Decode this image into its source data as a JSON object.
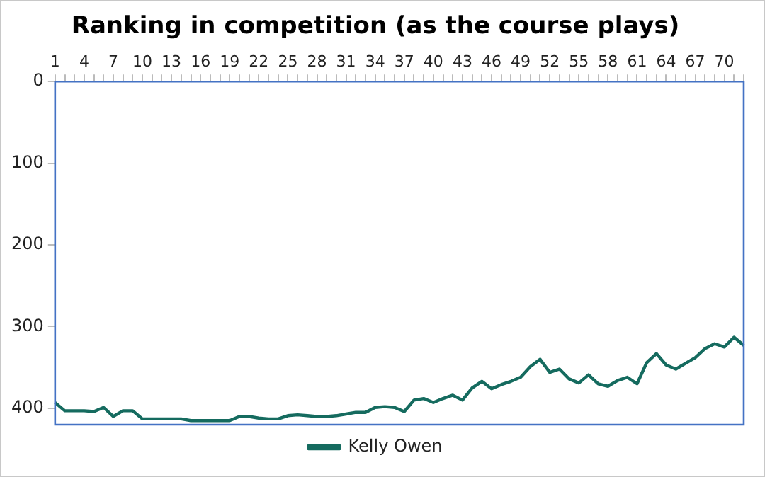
{
  "chart_data": {
    "type": "line",
    "title": "Ranking in competition (as the course plays)",
    "categories": [
      "1",
      null,
      null,
      "4",
      null,
      null,
      "7",
      null,
      null,
      "10",
      null,
      null,
      "13",
      null,
      null,
      "16",
      null,
      null,
      "19",
      null,
      null,
      "22",
      null,
      null,
      "25",
      null,
      null,
      "28",
      null,
      null,
      "31",
      null,
      null,
      "34",
      null,
      null,
      "37",
      null,
      null,
      "40",
      null,
      null,
      "43",
      null,
      null,
      "46",
      null,
      null,
      "49",
      null,
      null,
      "52",
      null,
      null,
      "55",
      null,
      null,
      "58",
      null,
      null,
      "61",
      null,
      null,
      "64",
      null,
      null,
      "67",
      null,
      null,
      "70",
      null,
      null
    ],
    "series": [
      {
        "name": "Kelly Owen",
        "color": "#156b5f",
        "values": [
          393,
          403,
          403,
          403,
          404,
          399,
          410,
          403,
          403,
          413,
          413,
          413,
          413,
          413,
          415,
          415,
          415,
          415,
          415,
          410,
          410,
          412,
          413,
          413,
          409,
          408,
          409,
          410,
          410,
          409,
          407,
          405,
          405,
          399,
          398,
          399,
          404,
          390,
          388,
          393,
          388,
          384,
          390,
          375,
          367,
          376,
          371,
          367,
          362,
          349,
          340,
          356,
          352,
          364,
          369,
          359,
          370,
          373,
          366,
          362,
          370,
          344,
          333,
          347,
          352,
          345,
          338,
          327,
          321,
          325,
          313,
          323
        ]
      }
    ],
    "ylim": [
      420,
      0
    ],
    "yticks": [
      0,
      100,
      200,
      300,
      400
    ],
    "grid": false,
    "legend": "bottom",
    "marker": "none",
    "line_style": "solid"
  }
}
